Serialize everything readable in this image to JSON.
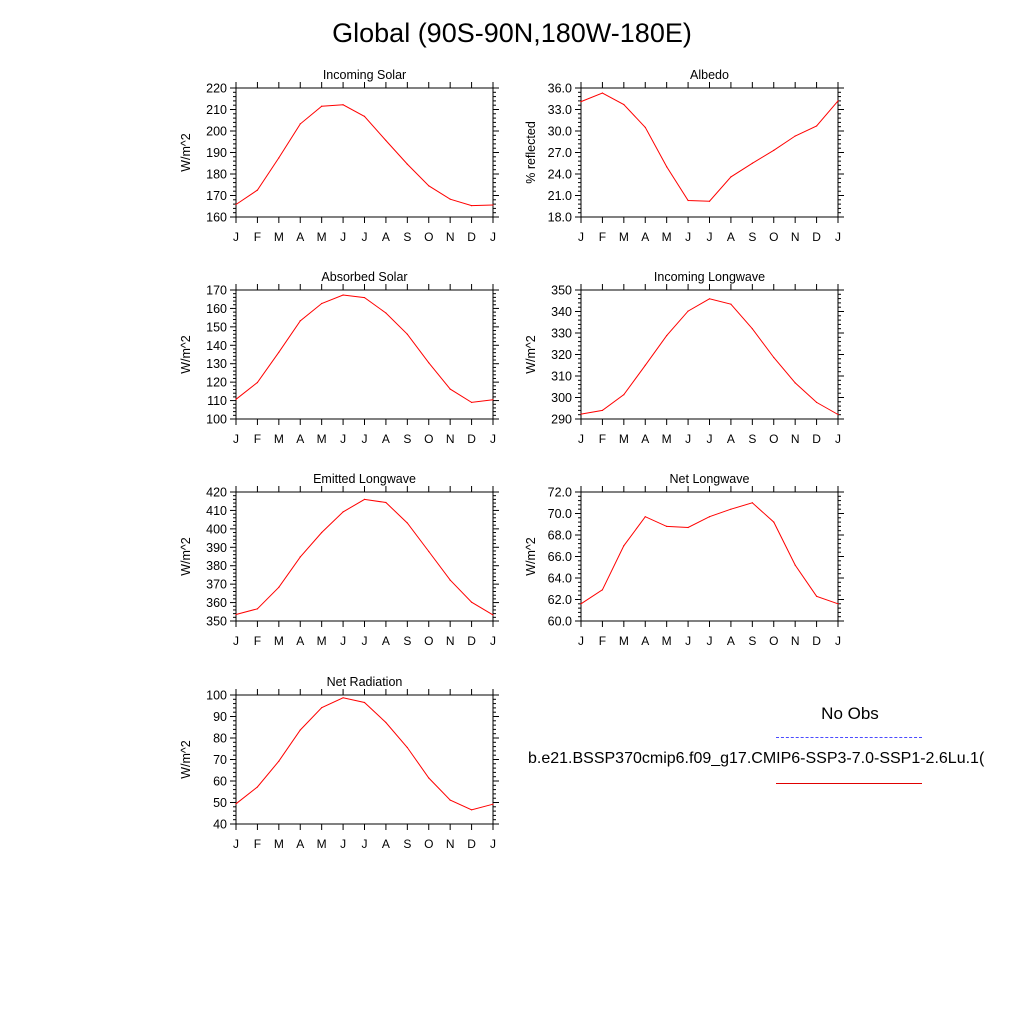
{
  "title": "Global (90S-90N,180W-180E)",
  "colors": {
    "model_line": "#ff0000",
    "obs_line": "#4a4aff",
    "axis": "#000000"
  },
  "legend": {
    "obs_label": "No Obs",
    "case_label": "b.e21.BSSP370cmip6.f09_g17.CMIP6-SSP3-7.0-SSP1-2.6Lu.1("
  },
  "chart_data": [
    {
      "type": "line",
      "title": "Incoming Solar",
      "ylabel": "W/m^2",
      "categories": [
        "J",
        "F",
        "M",
        "A",
        "M",
        "J",
        "J",
        "A",
        "S",
        "O",
        "N",
        "D",
        "J"
      ],
      "ylim": [
        160,
        220
      ],
      "yticks": [
        160,
        170,
        180,
        190,
        200,
        210,
        220
      ],
      "ytick_labels": [
        "160",
        "170",
        "180",
        "190",
        "200",
        "210",
        "220"
      ],
      "values": [
        165.8,
        172.5,
        187.5,
        203.3,
        211.5,
        212.2,
        206.8,
        195.6,
        184.6,
        174.5,
        168.3,
        165.3,
        165.6
      ]
    },
    {
      "type": "line",
      "title": "Albedo",
      "ylabel": "% reflected",
      "categories": [
        "J",
        "F",
        "M",
        "A",
        "M",
        "J",
        "J",
        "A",
        "S",
        "O",
        "N",
        "D",
        "J"
      ],
      "ylim": [
        18,
        36
      ],
      "yticks": [
        18,
        21,
        24,
        27,
        30,
        33,
        36
      ],
      "ytick_labels": [
        "18.0",
        "21.0",
        "24.0",
        "27.0",
        "30.0",
        "33.0",
        "36.0"
      ],
      "values": [
        34.1,
        35.3,
        33.7,
        30.5,
        25.0,
        20.3,
        20.2,
        23.6,
        25.5,
        27.3,
        29.3,
        30.7,
        34.2
      ]
    },
    {
      "type": "line",
      "title": "Absorbed Solar",
      "ylabel": "W/m^2",
      "categories": [
        "J",
        "F",
        "M",
        "A",
        "M",
        "J",
        "J",
        "A",
        "S",
        "O",
        "N",
        "D",
        "J"
      ],
      "ylim": [
        100,
        170
      ],
      "yticks": [
        100,
        110,
        120,
        130,
        140,
        150,
        160,
        170
      ],
      "ytick_labels": [
        "100",
        "110",
        "120",
        "130",
        "140",
        "150",
        "160",
        "170"
      ],
      "values": [
        110.7,
        119.8,
        136.2,
        153.3,
        162.7,
        167.3,
        165.9,
        157.5,
        146.0,
        130.5,
        116.2,
        109.0,
        110.4
      ]
    },
    {
      "type": "line",
      "title": "Incoming Longwave",
      "ylabel": "W/m^2",
      "categories": [
        "J",
        "F",
        "M",
        "A",
        "M",
        "J",
        "J",
        "A",
        "S",
        "O",
        "N",
        "D",
        "J"
      ],
      "ylim": [
        290,
        350
      ],
      "yticks": [
        290,
        300,
        310,
        320,
        330,
        340,
        350
      ],
      "ytick_labels": [
        "290",
        "300",
        "310",
        "320",
        "330",
        "340",
        "350"
      ],
      "values": [
        292.3,
        294.0,
        301.3,
        315.0,
        328.8,
        340.2,
        345.9,
        343.4,
        332.0,
        318.6,
        306.8,
        297.7,
        292.1
      ]
    },
    {
      "type": "line",
      "title": "Emitted Longwave",
      "ylabel": "W/m^2",
      "categories": [
        "J",
        "F",
        "M",
        "A",
        "M",
        "J",
        "J",
        "A",
        "S",
        "O",
        "N",
        "D",
        "J"
      ],
      "ylim": [
        350,
        420
      ],
      "yticks": [
        350,
        360,
        370,
        380,
        390,
        400,
        410,
        420
      ],
      "ytick_labels": [
        "350",
        "360",
        "370",
        "380",
        "390",
        "400",
        "410",
        "420"
      ],
      "values": [
        353.5,
        356.6,
        368.3,
        384.8,
        398.0,
        409.2,
        416.0,
        414.3,
        403.2,
        387.7,
        372.2,
        360.2,
        353.3
      ]
    },
    {
      "type": "line",
      "title": "Net Longwave",
      "ylabel": "W/m^2",
      "categories": [
        "J",
        "F",
        "M",
        "A",
        "M",
        "J",
        "J",
        "A",
        "S",
        "O",
        "N",
        "D",
        "J"
      ],
      "ylim": [
        60,
        72
      ],
      "yticks": [
        60,
        62,
        64,
        66,
        68,
        70,
        72
      ],
      "ytick_labels": [
        "60.0",
        "62.0",
        "64.0",
        "66.0",
        "68.0",
        "70.0",
        "72.0"
      ],
      "values": [
        61.6,
        62.9,
        67.0,
        69.7,
        68.8,
        68.7,
        69.7,
        70.4,
        71.0,
        69.2,
        65.2,
        62.3,
        61.6
      ]
    },
    {
      "type": "line",
      "title": "Net Radiation",
      "ylabel": "W/m^2",
      "categories": [
        "J",
        "F",
        "M",
        "A",
        "M",
        "J",
        "J",
        "A",
        "S",
        "O",
        "N",
        "D",
        "J"
      ],
      "ylim": [
        40,
        100
      ],
      "yticks": [
        40,
        50,
        60,
        70,
        80,
        90,
        100
      ],
      "ytick_labels": [
        "40",
        "50",
        "60",
        "70",
        "80",
        "90",
        "100"
      ],
      "values": [
        49.4,
        57.2,
        69.2,
        83.7,
        94.1,
        98.7,
        96.5,
        87.2,
        75.6,
        61.4,
        51.1,
        46.6,
        49.2
      ]
    }
  ]
}
